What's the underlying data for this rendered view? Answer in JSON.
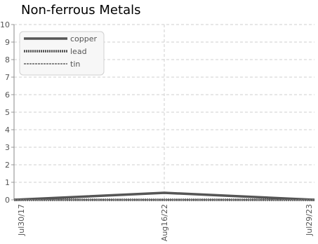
{
  "chart_data": {
    "type": "line",
    "title": "Non-ferrous Metals",
    "xlabel": "",
    "ylabel": "",
    "x": [
      "Jul30/17",
      "Aug16/22",
      "Jul29/23"
    ],
    "ylim": [
      0,
      10
    ],
    "yticks": [
      0,
      1,
      2,
      3,
      4,
      5,
      6,
      7,
      8,
      9,
      10
    ],
    "grid": true,
    "legend_position": "top-left",
    "series": [
      {
        "name": "copper",
        "values": [
          0.0,
          0.4,
          0.0
        ],
        "color": "#555555",
        "style": "solid"
      },
      {
        "name": "lead",
        "values": [
          0.0,
          0.0,
          0.0
        ],
        "color": "#555555",
        "style": "dotted"
      },
      {
        "name": "tin",
        "values": [
          0.0,
          0.0,
          0.0
        ],
        "color": "#777777",
        "style": "dashed"
      }
    ]
  }
}
